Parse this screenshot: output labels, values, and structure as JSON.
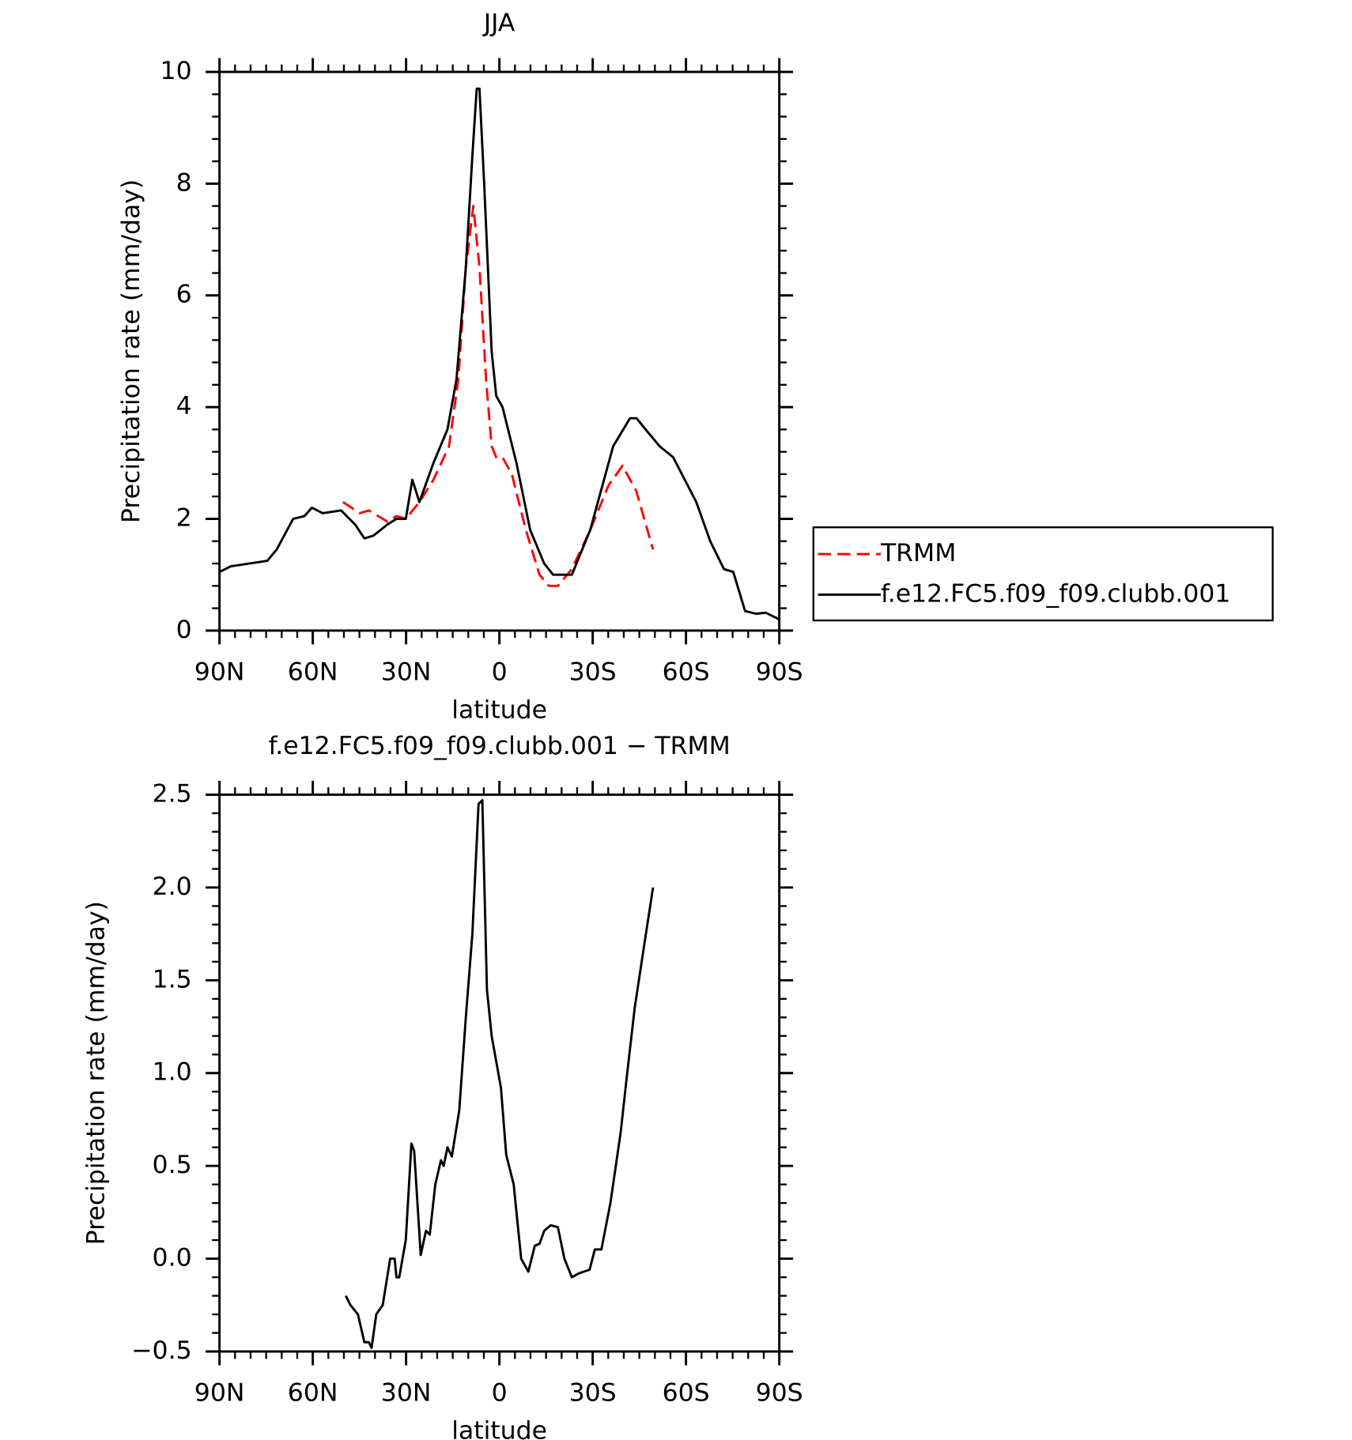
{
  "chart_data": [
    {
      "type": "line",
      "title": "JJA",
      "xlabel": "latitude",
      "ylabel": "Precipitation rate (mm/day)",
      "xlim": [
        90,
        -90
      ],
      "ylim": [
        0,
        10
      ],
      "xticks": [
        {
          "value": 90,
          "label": "90N"
        },
        {
          "value": 60,
          "label": "60N"
        },
        {
          "value": 30,
          "label": "30N"
        },
        0,
        {
          "value": -30,
          "label": "30S"
        },
        {
          "value": -60,
          "label": "60S"
        },
        {
          "value": -90,
          "label": "90S"
        }
      ],
      "yticks": [
        0,
        2,
        4,
        6,
        8,
        10
      ],
      "legend": "right",
      "series": [
        {
          "name": "TRMM",
          "color": "#ff0000",
          "dash": true,
          "x": [
            50.3,
            44.9,
            42,
            39,
            36,
            33.1,
            30.1,
            25.7,
            21.2,
            16.2,
            13.2,
            10.8,
            8.4,
            6.4,
            4.3,
            2.5,
            1,
            -1,
            -4,
            -8.5,
            -12.9,
            -15.9,
            -18.8,
            -23.3,
            -29.2,
            -35.1,
            -39.6,
            -44,
            -49.4
          ],
          "values": [
            2.3,
            2.1,
            2.15,
            2.05,
            1.95,
            2.05,
            2.0,
            2.3,
            2.7,
            3.3,
            4.5,
            6.5,
            7.6,
            6.5,
            4.5,
            3.3,
            3.1,
            3.1,
            2.8,
            1.8,
            1.0,
            0.8,
            0.8,
            1.1,
            1.8,
            2.6,
            2.95,
            2.5,
            1.45
          ]
        },
        {
          "name": "f.e12.FC5.f09_f09.clubb.001",
          "color": "#000000",
          "dash": false,
          "x": [
            90,
            86.4,
            80.5,
            74.6,
            71.6,
            66.3,
            62.7,
            60.3,
            56.8,
            50.9,
            46.4,
            43.4,
            40.5,
            36,
            33.1,
            30.1,
            28,
            25.7,
            21.2,
            16.7,
            13.8,
            10.8,
            8.7,
            7.3,
            6.4,
            4.9,
            2.5,
            1,
            -1,
            -5.5,
            -9.9,
            -14.4,
            -17.3,
            -23.3,
            -29.2,
            -36.6,
            -42,
            -44.1,
            -47,
            -51.5,
            -55.9,
            -63.3,
            -67.8,
            -72.2,
            -75.2,
            -79,
            -82.6,
            -85.6,
            -90
          ],
          "values": [
            1.05,
            1.15,
            1.2,
            1.25,
            1.45,
            2.0,
            2.05,
            2.2,
            2.1,
            2.15,
            1.9,
            1.65,
            1.7,
            1.9,
            2.0,
            2.0,
            2.7,
            2.3,
            3.0,
            3.6,
            4.5,
            6.5,
            8.5,
            9.7,
            9.7,
            8.0,
            5.0,
            4.2,
            4.0,
            3.0,
            1.8,
            1.2,
            1.0,
            1.0,
            1.8,
            3.3,
            3.8,
            3.8,
            3.6,
            3.3,
            3.1,
            2.3,
            1.6,
            1.1,
            1.05,
            0.35,
            0.3,
            0.32,
            0.2
          ]
        }
      ]
    },
    {
      "type": "line",
      "title": "f.e12.FC5.f09_f09.clubb.001 − TRMM",
      "xlabel": "latitude",
      "ylabel": "Precipitation rate (mm/day)",
      "xlim": [
        90,
        -90
      ],
      "ylim": [
        -0.5,
        2.5
      ],
      "xticks": [
        {
          "value": 90,
          "label": "90N"
        },
        {
          "value": 60,
          "label": "60N"
        },
        {
          "value": 30,
          "label": "30N"
        },
        0,
        {
          "value": -30,
          "label": "30S"
        },
        {
          "value": -60,
          "label": "60S"
        },
        {
          "value": -90,
          "label": "90S"
        }
      ],
      "yticks": [
        {
          "value": -0.5,
          "label": "−0.5"
        },
        {
          "value": 0,
          "label": "0.0"
        },
        0.5,
        {
          "value": 1,
          "label": "1.0"
        },
        1.5,
        {
          "value": 2,
          "label": "2.0"
        },
        2.5
      ],
      "series": [
        {
          "color": "#000000",
          "dash": false,
          "x": [
            49.4,
            47.9,
            45.5,
            43.4,
            42,
            41.1,
            39.6,
            37.5,
            35.1,
            33.7,
            33.1,
            32.2,
            30.1,
            28.3,
            27.4,
            25.3,
            23.6,
            22.4,
            20.6,
            18.8,
            17.9,
            16.7,
            15.3,
            12.9,
            10.8,
            8.7,
            6.7,
            5.5,
            4,
            2.5,
            -0.5,
            -2.2,
            -4.6,
            -7,
            -9.3,
            -11.4,
            -12.9,
            -14.4,
            -16.5,
            -18.8,
            -20.9,
            -23.3,
            -25.4,
            -27.1,
            -29,
            -30.7,
            -32.8,
            -35.7,
            -39,
            -41.1,
            -43.5,
            -46.2,
            -49.4
          ],
          "values": [
            -0.2,
            -0.25,
            -0.3,
            -0.45,
            -0.45,
            -0.48,
            -0.3,
            -0.25,
            0.0,
            0.0,
            -0.1,
            -0.1,
            0.1,
            0.62,
            0.58,
            0.02,
            0.15,
            0.13,
            0.4,
            0.53,
            0.5,
            0.6,
            0.55,
            0.8,
            1.3,
            1.75,
            2.45,
            2.47,
            1.45,
            1.2,
            0.92,
            0.56,
            0.4,
            0.0,
            -0.07,
            0.07,
            0.08,
            0.15,
            0.18,
            0.17,
            0.0,
            -0.1,
            -0.08,
            -0.07,
            -0.06,
            0.05,
            0.05,
            0.3,
            0.68,
            1.0,
            1.35,
            1.65,
            2.0
          ]
        }
      ]
    }
  ]
}
